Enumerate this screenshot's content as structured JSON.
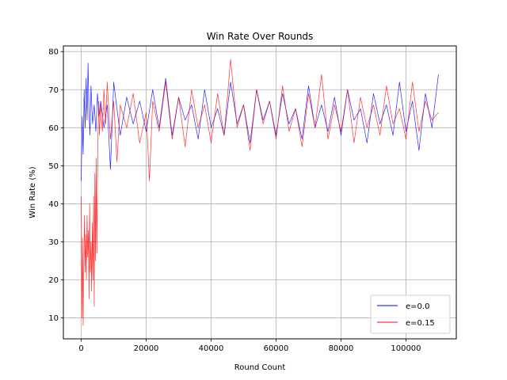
{
  "chart_data": {
    "type": "line",
    "title": "Win Rate Over Rounds",
    "xlabel": "Round Count",
    "ylabel": "Win Rate (%)",
    "xlim": [
      -5500,
      115500
    ],
    "ylim": [
      4.5,
      81.5
    ],
    "xticks": [
      0,
      20000,
      40000,
      60000,
      80000,
      100000
    ],
    "yticks": [
      10,
      20,
      30,
      40,
      50,
      60,
      70,
      80
    ],
    "grid": true,
    "legend_position": "lower-right",
    "series": [
      {
        "name": "e=0.0",
        "color": "#0000ff",
        "x": [
          0,
          300,
          600,
          900,
          1200,
          1500,
          1800,
          2100,
          2400,
          2700,
          3000,
          3500,
          4000,
          4500,
          5000,
          5500,
          6000,
          7000,
          8000,
          9000,
          10000,
          12000,
          14000,
          16000,
          18000,
          20000,
          22000,
          24000,
          26000,
          28000,
          30000,
          32000,
          34000,
          36000,
          38000,
          40000,
          42000,
          44000,
          46000,
          48000,
          50000,
          52000,
          54000,
          56000,
          58000,
          60000,
          62000,
          64000,
          66000,
          68000,
          70000,
          72000,
          74000,
          76000,
          78000,
          80000,
          82000,
          84000,
          86000,
          88000,
          90000,
          92000,
          94000,
          96000,
          98000,
          100000,
          102000,
          104000,
          106000,
          108000,
          110000
        ],
        "y": [
          46,
          63,
          53,
          70,
          60,
          73,
          62,
          77,
          64,
          58,
          71,
          61,
          66,
          59,
          69,
          63,
          67,
          60,
          66,
          49,
          72,
          58,
          68,
          61,
          67,
          59,
          70,
          60,
          73,
          58,
          68,
          62,
          66,
          57,
          70,
          60,
          65,
          58,
          72,
          61,
          66,
          56,
          70,
          62,
          67,
          58,
          69,
          61,
          65,
          57,
          71,
          60,
          66,
          59,
          68,
          58,
          70,
          62,
          65,
          56,
          69,
          61,
          66,
          58,
          72,
          59,
          67,
          54,
          69,
          60,
          74
        ]
      },
      {
        "name": "e=0.15",
        "color": "#ff0000",
        "x": [
          0,
          200,
          400,
          600,
          800,
          1000,
          1200,
          1400,
          1600,
          1800,
          2000,
          2200,
          2400,
          2600,
          2800,
          3000,
          3200,
          3400,
          3600,
          3800,
          4000,
          4200,
          4400,
          4600,
          4800,
          5000,
          5200,
          5400,
          5600,
          6000,
          6500,
          7000,
          7500,
          8000,
          9000,
          10000,
          11000,
          12000,
          14000,
          16000,
          18000,
          20000,
          21000,
          22000,
          24000,
          26000,
          28000,
          30000,
          32000,
          34000,
          36000,
          38000,
          40000,
          42000,
          44000,
          46000,
          48000,
          50000,
          52000,
          54000,
          56000,
          58000,
          60000,
          62000,
          64000,
          66000,
          68000,
          70000,
          72000,
          74000,
          76000,
          78000,
          80000,
          82000,
          84000,
          86000,
          88000,
          90000,
          92000,
          94000,
          96000,
          98000,
          100000,
          102000,
          104000,
          106000,
          108000,
          110000
        ],
        "y": [
          42,
          10,
          31,
          8,
          25,
          37,
          22,
          32,
          20,
          37,
          26,
          33,
          15,
          40,
          22,
          30,
          17,
          35,
          20,
          42,
          13,
          48,
          25,
          52,
          27,
          46,
          60,
          67,
          58,
          66,
          59,
          70,
          61,
          72,
          57,
          67,
          51,
          66,
          60,
          69,
          56,
          64,
          46,
          67,
          59,
          72,
          57,
          68,
          55,
          70,
          60,
          66,
          56,
          69,
          58,
          78,
          60,
          66,
          54,
          70,
          61,
          67,
          57,
          71,
          59,
          65,
          55,
          69,
          60,
          74,
          57,
          66,
          59,
          70,
          56,
          68,
          60,
          66,
          58,
          71,
          61,
          65,
          57,
          72,
          59,
          67,
          62,
          64
        ]
      }
    ]
  }
}
